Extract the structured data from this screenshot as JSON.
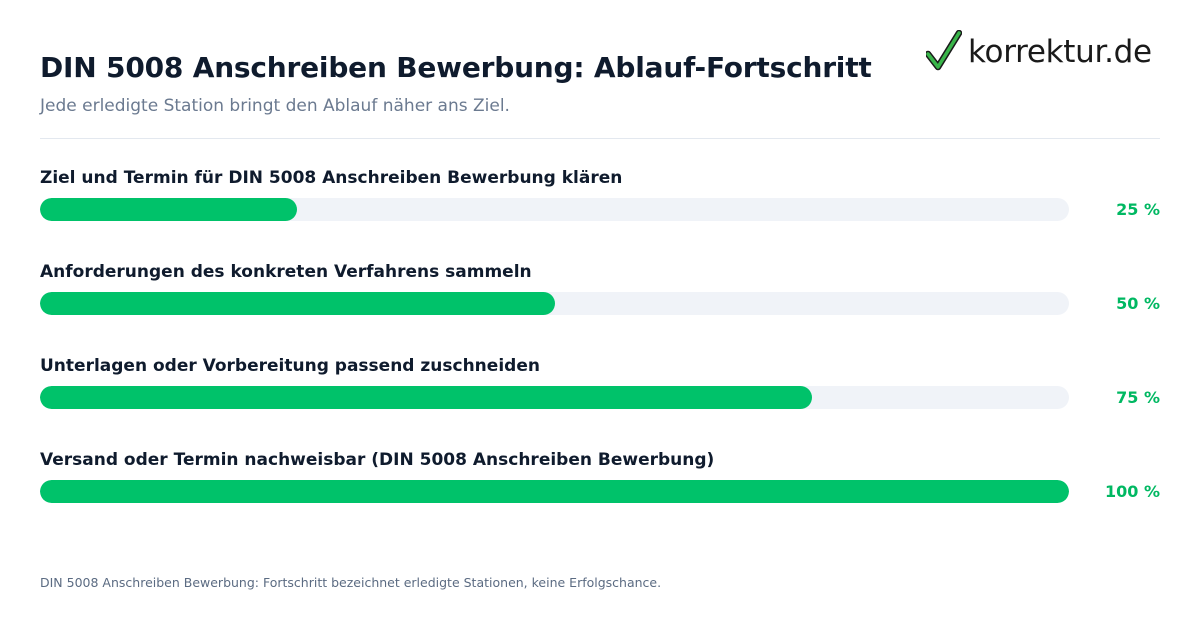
{
  "header": {
    "title": "DIN 5008 Anschreiben Bewerbung: Ablauf-Fortschritt",
    "subtitle": "Jede erledigte Station bringt den Ablauf näher ans Ziel."
  },
  "brand": {
    "logo_text": "korrektur.de",
    "logo_icon": "checkmark-icon",
    "check_color": "#39b54a"
  },
  "colors": {
    "fill": "#00c26a",
    "track": "#f0f3f8",
    "percent_text": "#00b862"
  },
  "chart_data": {
    "type": "bar",
    "orientation": "horizontal",
    "title": "DIN 5008 Anschreiben Bewerbung: Ablauf-Fortschritt",
    "subtitle": "Jede erledigte Station bringt den Ablauf näher ans Ziel.",
    "categories": [
      "Ziel und Termin für DIN 5008 Anschreiben Bewerbung klären",
      "Anforderungen des konkreten Verfahrens sammeln",
      "Unterlagen oder Vorbereitung passend zuschneiden",
      "Versand oder Termin nachweisbar (DIN 5008 Anschreiben Bewerbung)"
    ],
    "values": [
      25,
      50,
      75,
      100
    ],
    "value_labels": [
      "25 %",
      "50 %",
      "75 %",
      "100 %"
    ],
    "xlim": [
      0,
      100
    ],
    "grid": false
  },
  "footer": {
    "note": "DIN 5008 Anschreiben Bewerbung: Fortschritt bezeichnet erledigte Stationen, keine Erfolgschance."
  }
}
